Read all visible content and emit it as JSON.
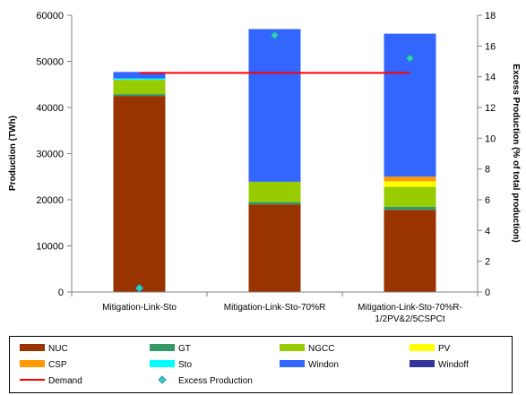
{
  "chart_data": {
    "type": "bar",
    "stacked": true,
    "categories": [
      [
        "Mitigation-Link-Sto"
      ],
      [
        "Mitigation-Link-Sto-70%R"
      ],
      [
        "Mitigation-Link-Sto-70%R-",
        "1/2PV&2/5CSPCt"
      ]
    ],
    "series": [
      {
        "name": "NUC",
        "color": "#993300",
        "values": [
          42500,
          19000,
          17800
        ]
      },
      {
        "name": "GT",
        "color": "#339966",
        "values": [
          400,
          500,
          700
        ]
      },
      {
        "name": "NGCC",
        "color": "#99cc00",
        "values": [
          3100,
          4400,
          4300
        ]
      },
      {
        "name": "PV",
        "color": "#ffff00",
        "values": [
          0,
          0,
          1200
        ]
      },
      {
        "name": "CSP",
        "color": "#ff9900",
        "values": [
          0,
          0,
          1000
        ]
      },
      {
        "name": "Sto",
        "color": "#00ffff",
        "values": [
          300,
          0,
          0
        ]
      },
      {
        "name": "Windon",
        "color": "#3366ff",
        "values": [
          1400,
          33100,
          31000
        ]
      },
      {
        "name": "Windoff",
        "color": "#333399",
        "values": [
          0,
          0,
          0
        ]
      }
    ],
    "demand": {
      "name": "Demand",
      "color": "#ff0000",
      "value": 47500
    },
    "excess_production": {
      "name": "Excess Production",
      "color": "#33cccc",
      "values": [
        0.25,
        16.7,
        15.2
      ]
    },
    "ylabel": "Production (TWh)",
    "y2label": "Excess Production (% of total production)",
    "ylim": [
      0,
      60000
    ],
    "yticks": [
      0,
      10000,
      20000,
      30000,
      40000,
      50000,
      60000
    ],
    "y2lim": [
      0,
      18
    ],
    "y2ticks": [
      0,
      2,
      4,
      6,
      8,
      10,
      12,
      14,
      16,
      18
    ],
    "grid": false,
    "legend_position": "bottom"
  }
}
